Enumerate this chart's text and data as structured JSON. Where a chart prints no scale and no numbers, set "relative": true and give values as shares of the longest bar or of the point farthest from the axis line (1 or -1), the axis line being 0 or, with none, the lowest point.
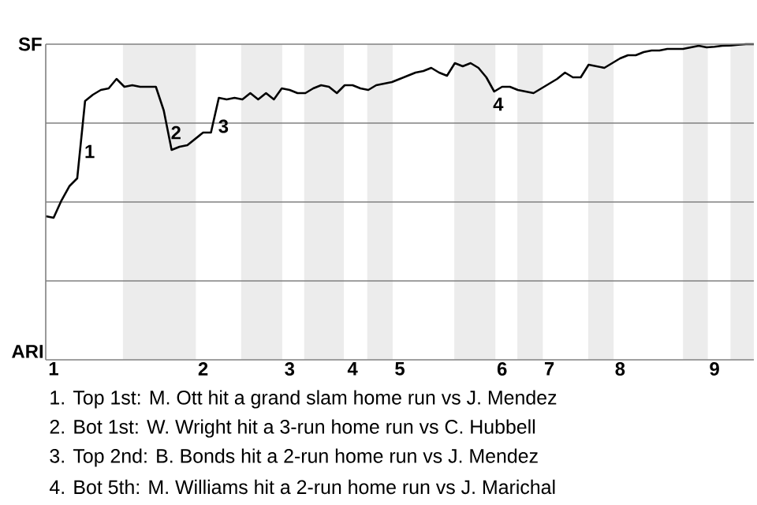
{
  "chart_data": {
    "type": "line",
    "relative": true,
    "categories": [
      null,
      "1",
      null,
      null,
      null,
      null,
      null,
      null,
      null,
      null,
      null,
      null,
      null,
      null,
      null,
      null,
      null,
      null,
      null,
      null,
      "2",
      null,
      null,
      null,
      null,
      null,
      null,
      null,
      null,
      null,
      null,
      "3",
      null,
      null,
      null,
      null,
      null,
      null,
      null,
      "4",
      null,
      null,
      null,
      null,
      null,
      "5",
      null,
      null,
      null,
      null,
      null,
      null,
      null,
      null,
      null,
      null,
      null,
      null,
      "6",
      null,
      null,
      null,
      null,
      null,
      "7",
      null,
      null,
      null,
      null,
      null,
      null,
      null,
      null,
      "8",
      null,
      null,
      null,
      null,
      null,
      null,
      null,
      null,
      null,
      null,
      null,
      "9",
      null,
      null,
      null,
      null,
      null
    ],
    "series": [
      {
        "color": "#000000",
        "values": [
          0.455,
          0.45,
          0.505,
          0.55,
          0.575,
          0.82,
          0.84,
          0.855,
          0.86,
          0.89,
          0.865,
          0.87,
          0.865,
          0.865,
          0.865,
          0.79,
          0.665,
          0.675,
          0.68,
          0.7,
          0.72,
          0.72,
          0.83,
          0.825,
          0.83,
          0.825,
          0.845,
          0.825,
          0.845,
          0.825,
          0.86,
          0.855,
          0.845,
          0.845,
          0.86,
          0.87,
          0.865,
          0.845,
          0.87,
          0.87,
          0.86,
          0.855,
          0.87,
          0.875,
          0.88,
          0.89,
          0.9,
          0.91,
          0.915,
          0.925,
          0.91,
          0.9,
          0.94,
          0.93,
          0.94,
          0.925,
          0.895,
          0.85,
          0.865,
          0.865,
          0.855,
          0.85,
          0.845,
          0.86,
          0.875,
          0.89,
          0.91,
          0.895,
          0.895,
          0.935,
          0.93,
          0.925,
          0.94,
          0.955,
          0.965,
          0.965,
          0.975,
          0.98,
          0.98,
          0.985,
          0.985,
          0.985,
          0.99,
          0.995,
          0.99,
          0.992,
          0.995,
          0.996,
          0.998,
          1.0,
          1.0
        ]
      }
    ],
    "ylabel": "SF",
    "grid": "y",
    "annotations": [
      "ARI",
      "1",
      "2",
      "3",
      "4",
      "1. Top 1st: M. Ott hit a grand slam home run vs J. Mendez",
      "2. Bot 1st: W. Wright hit a 3-run home run vs C. Hubbell",
      "3. Top 2nd: B. Bonds hit a 2-run home run vs J. Mendez",
      "4. Bot 5th: M. Williams hit a 2-run home run vs J. Marichal"
    ]
  }
}
